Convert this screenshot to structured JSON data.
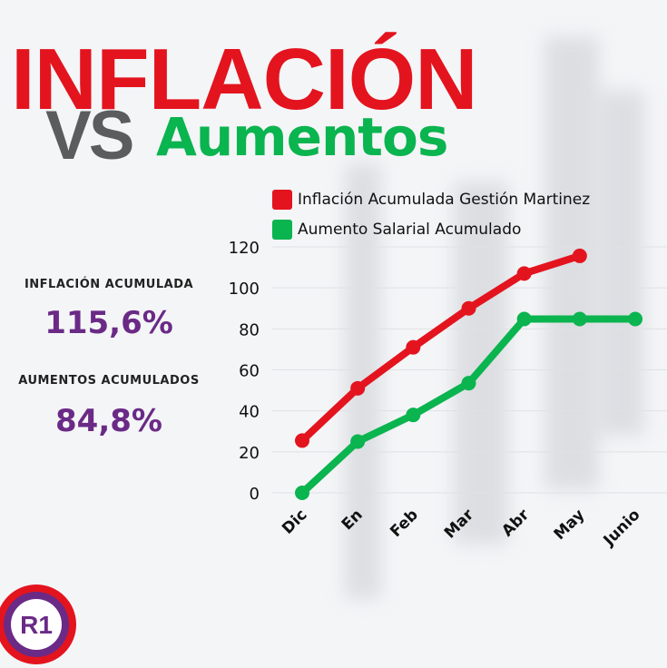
{
  "header": {
    "title": "INFLACIÓN",
    "vs": "VS",
    "subtitle": "Aumentos"
  },
  "stats": [
    {
      "label": "INFLACIÓN ACUMULADA",
      "value": "115,6%"
    },
    {
      "label": "AUMENTOS ACUMULADOS",
      "value": "84,8%"
    }
  ],
  "logo": {
    "text": "R1"
  },
  "colors": {
    "inflation": "#e3141e",
    "salary": "#0ab44f",
    "accent": "#6a2a86",
    "vs": "#5b5c5e"
  },
  "chart_data": {
    "type": "line",
    "categories": [
      "Dic",
      "En",
      "Feb",
      "Mar",
      "Abr",
      "May",
      "Junio"
    ],
    "series": [
      {
        "name": "Inflación Acumulada Gestión Martinez",
        "color": "#e3141e",
        "values": [
          25.5,
          51,
          71,
          90,
          107,
          115.6,
          null
        ]
      },
      {
        "name": "Aumento Salarial Acumulado",
        "color": "#0ab44f",
        "values": [
          0,
          25,
          38,
          53.5,
          84.8,
          84.8,
          84.8
        ]
      }
    ],
    "yticks": [
      0,
      20,
      40,
      60,
      80,
      100,
      120
    ],
    "ylim": [
      0,
      120
    ],
    "grid": true,
    "legend": "top-right"
  }
}
